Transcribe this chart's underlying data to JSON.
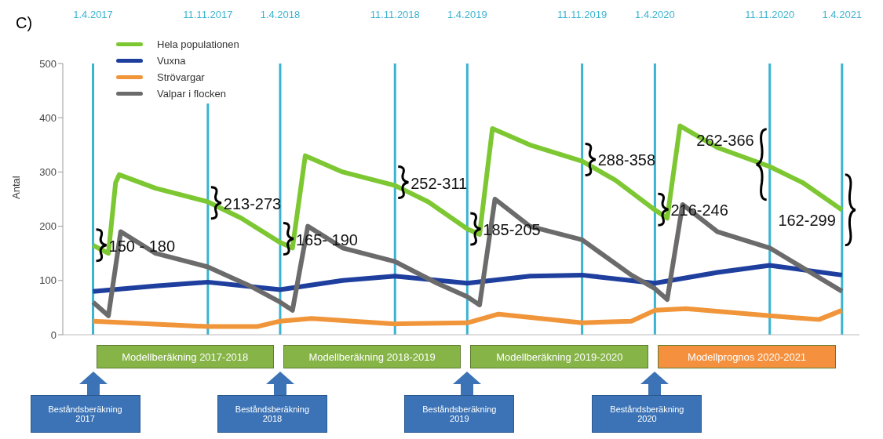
{
  "chart_data": {
    "type": "line",
    "title": "C)",
    "ylabel": "Antal",
    "xlim": [
      "2017-02-01",
      "2021-05-05"
    ],
    "xticks": [
      {
        "value": "2017-04-01",
        "label": "1.4.2017"
      },
      {
        "value": "2017-11-11",
        "label": "11.11.2017"
      },
      {
        "value": "2018-04-01",
        "label": "1.4.2018"
      },
      {
        "value": "2018-11-11",
        "label": "11.11.2018"
      },
      {
        "value": "2019-04-01",
        "label": "1.4.2019"
      },
      {
        "value": "2019-11-11",
        "label": "11.11.2019"
      },
      {
        "value": "2020-04-01",
        "label": "1.4.2020"
      },
      {
        "value": "2020-11-11",
        "label": "11.11.2020"
      },
      {
        "value": "2021-04-01",
        "label": "1.4.2021"
      }
    ],
    "ylim": [
      0,
      500
    ],
    "yticks": [
      0,
      100,
      200,
      300,
      400,
      500
    ],
    "grid": false,
    "legend": "top left",
    "marker": "none",
    "line_style": "solid",
    "series": [
      {
        "name": "Hela populationen",
        "color": "#7dc832",
        "x": [
          "2017-04-01",
          "2017-05-01",
          "2017-05-15",
          "2017-05-22",
          "2017-08-01",
          "2017-11-11",
          "2018-01-15",
          "2018-04-01",
          "2018-04-25",
          "2018-05-20",
          "2018-08-01",
          "2018-11-11",
          "2019-01-15",
          "2019-04-01",
          "2019-04-25",
          "2019-05-20",
          "2019-08-01",
          "2019-11-11",
          "2020-01-15",
          "2020-04-01",
          "2020-04-25",
          "2020-05-20",
          "2020-08-01",
          "2020-11-11",
          "2021-01-15",
          "2021-04-01"
        ],
        "values": [
          165,
          150,
          280,
          295,
          270,
          245,
          215,
          170,
          160,
          330,
          300,
          275,
          245,
          195,
          185,
          380,
          350,
          320,
          285,
          230,
          215,
          385,
          345,
          310,
          280,
          230
        ]
      },
      {
        "name": "Vuxna",
        "color": "#1f3f9f",
        "x": [
          "2017-04-01",
          "2017-08-01",
          "2017-11-11",
          "2018-04-01",
          "2018-08-01",
          "2018-11-11",
          "2019-04-01",
          "2019-08-01",
          "2019-11-11",
          "2020-04-01",
          "2020-08-01",
          "2020-11-11",
          "2021-04-01"
        ],
        "values": [
          80,
          90,
          97,
          83,
          100,
          108,
          95,
          108,
          110,
          95,
          115,
          128,
          110
        ]
      },
      {
        "name": "Strövargar",
        "color": "#f0953a",
        "x": [
          "2017-04-01",
          "2017-11-11",
          "2018-02-15",
          "2018-04-01",
          "2018-06-01",
          "2018-11-11",
          "2019-04-01",
          "2019-06-01",
          "2019-11-11",
          "2020-02-15",
          "2020-04-01",
          "2020-06-01",
          "2020-11-11",
          "2021-02-15",
          "2021-04-01"
        ],
        "values": [
          25,
          15,
          15,
          25,
          30,
          20,
          22,
          38,
          22,
          25,
          45,
          48,
          35,
          28,
          45
        ]
      },
      {
        "name": "Valpar i flocken",
        "color": "#6b6b6b",
        "x": [
          "2017-04-01",
          "2017-05-01",
          "2017-05-25",
          "2017-08-01",
          "2017-11-11",
          "2018-02-01",
          "2018-04-01",
          "2018-04-25",
          "2018-05-25",
          "2018-08-01",
          "2018-11-11",
          "2019-02-01",
          "2019-04-01",
          "2019-04-25",
          "2019-05-25",
          "2019-08-01",
          "2019-11-11",
          "2020-02-15",
          "2020-04-01",
          "2020-04-25",
          "2020-05-25",
          "2020-08-01",
          "2020-11-11",
          "2021-04-01"
        ],
        "values": [
          60,
          35,
          190,
          150,
          125,
          90,
          60,
          45,
          200,
          160,
          135,
          95,
          70,
          55,
          250,
          200,
          175,
          110,
          85,
          65,
          240,
          190,
          160,
          80
        ]
      }
    ],
    "ref_lines": [
      {
        "axis": "x",
        "value": "2017-04-01",
        "color": "#3bb3d0"
      },
      {
        "axis": "x",
        "value": "2017-11-11",
        "color": "#3bb3d0"
      },
      {
        "axis": "x",
        "value": "2018-04-01",
        "color": "#3bb3d0"
      },
      {
        "axis": "x",
        "value": "2018-11-11",
        "color": "#3bb3d0"
      },
      {
        "axis": "x",
        "value": "2019-04-01",
        "color": "#3bb3d0"
      },
      {
        "axis": "x",
        "value": "2019-11-11",
        "color": "#3bb3d0"
      },
      {
        "axis": "x",
        "value": "2020-04-01",
        "color": "#3bb3d0"
      },
      {
        "axis": "x",
        "value": "2020-11-11",
        "color": "#3bb3d0"
      },
      {
        "axis": "x",
        "value": "2021-04-01",
        "color": "#3bb3d0"
      }
    ],
    "annotations": [
      {
        "text": "150 - 180",
        "x": "2017-04-01",
        "y": 165
      },
      {
        "text": "213-273",
        "x": "2017-11-11",
        "y": 243
      },
      {
        "text": "165- 190",
        "x": "2018-04-01",
        "y": 177
      },
      {
        "text": "252-311",
        "x": "2018-11-11",
        "y": 281
      },
      {
        "text": "185-205",
        "x": "2019-04-01",
        "y": 195
      },
      {
        "text": "288-358",
        "x": "2019-11-11",
        "y": 323
      },
      {
        "text": "216-246",
        "x": "2020-04-01",
        "y": 231
      },
      {
        "text": "262-366",
        "x": "2020-11-11",
        "y": 314
      },
      {
        "text": "162-299",
        "x": "2021-04-01",
        "y": 230
      },
      "Modellberäkning 2017-2018",
      "Modellberäkning 2018-2019",
      "Modellberäkning 2019-2020",
      "Modellprognos 2020-2021",
      "Beståndsberäkning 2017",
      "Beståndsberäkning 2018",
      "Beståndsberäkning 2019",
      "Beståndsberäkning 2020"
    ]
  }
}
